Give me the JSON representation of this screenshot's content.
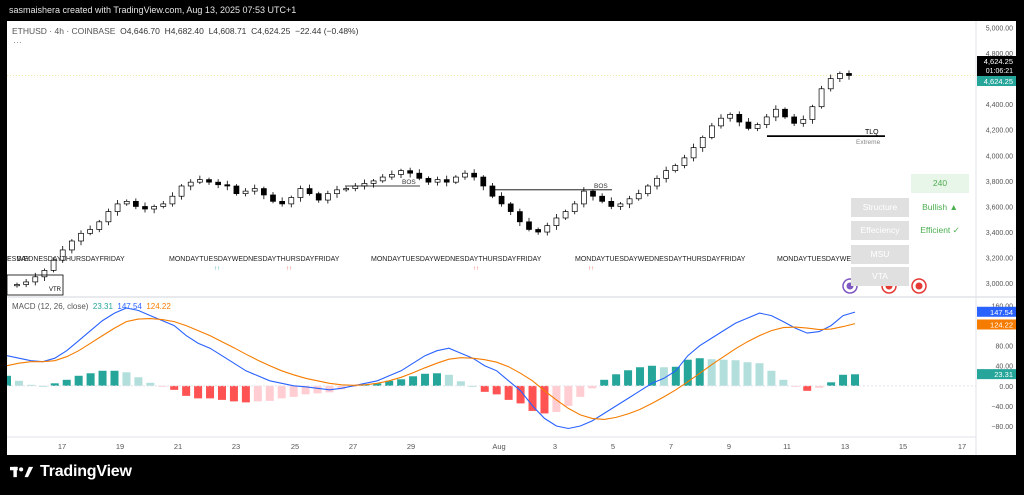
{
  "header": {
    "title": "sasmaishera created with TradingView.com, Aug 13, 2025 07:53 UTC+1"
  },
  "symbol_bar": {
    "name": "ETHUSD · 4h · COINBASE",
    "open": "O4,646.70",
    "high": "H4,682.40",
    "low": "L4,608.71",
    "close": "C4,624.25",
    "change": "−22.44 (−0.48%)",
    "more": "···"
  },
  "price_tags": {
    "last": "4,624.25",
    "countdown": "01:06:21",
    "last2": "4,624.25"
  },
  "macd_tags": {
    "macd": "147.54",
    "signal": "124.22",
    "hist": "23.31"
  },
  "macd_legend": {
    "name": "MACD (12, 26, close)",
    "hist": "23.31",
    "macd": "147.54",
    "signal": "124.22"
  },
  "annotations": {
    "bos1": "BOS",
    "bos2": "BOS",
    "tlq": "TLQ",
    "extreme": "Extreme",
    "vtr": "VTR",
    "day_labels_1": "MONDAYTUESDAYWEDNESDAYTHURSDAYFRIDAY",
    "day_labels_2": "MONDAYTUESDAYWEDNESDAYTHURSDAYFRIDAY",
    "day_labels_3": "MONDAYTUESDAYWEDNESDAYTHURSDAYFRIDAY",
    "day_labels_4": "MONDAYTUESDAYWEDNESDAY",
    "day_labels_0": "WEDNESDAYTHURSDAYFRIDAY",
    "day_labels_0_prefix": "ESDAY"
  },
  "info_table": {
    "header_value": "240",
    "rows": [
      {
        "label": "Structure",
        "value": "Bullish ▲"
      },
      {
        "label": "Effeciency",
        "value": "Efficient ✓"
      },
      {
        "label": "MSU",
        "value": ""
      },
      {
        "label": "VTA",
        "value": ""
      }
    ]
  },
  "brand": {
    "name": "TradingView"
  },
  "colors": {
    "up": "#26a69a",
    "down": "#ef5350",
    "macd": "#2962ff",
    "signal": "#f57c00",
    "hist_up_strong": "#26a69a",
    "hist_up_weak": "#b2dfdb",
    "hist_dn_strong": "#ff5252",
    "hist_dn_weak": "#ffcdd2",
    "candle": "#000000",
    "table_green": "#4caf50"
  },
  "chart_data": [
    {
      "type": "candlestick",
      "title": "ETHUSD · 4h · COINBASE",
      "ylim": [
        2900,
        5050
      ],
      "y_ticks": [
        "5,000.00",
        "4,800.00",
        "4,600.00",
        "4,400.00",
        "4,200.00",
        "4,000.00",
        "3,800.00",
        "3,600.00",
        "3,400.00",
        "3,200.00",
        "3,000.00"
      ],
      "y_tick_values": [
        5000,
        4800,
        4600,
        4400,
        4200,
        4000,
        3800,
        3600,
        3400,
        3200,
        3000
      ],
      "x_ticks": [
        "17",
        "19",
        "21",
        "23",
        "25",
        "27",
        "29",
        "Aug",
        "3",
        "5",
        "7",
        "9",
        "11",
        "13",
        "15",
        "17"
      ],
      "close_path": [
        2990,
        3010,
        3050,
        3100,
        3180,
        3260,
        3330,
        3390,
        3420,
        3480,
        3560,
        3620,
        3640,
        3600,
        3580,
        3600,
        3620,
        3680,
        3760,
        3790,
        3810,
        3790,
        3770,
        3760,
        3700,
        3720,
        3740,
        3690,
        3640,
        3620,
        3670,
        3740,
        3700,
        3650,
        3700,
        3730,
        3740,
        3760,
        3780,
        3800,
        3830,
        3850,
        3880,
        3860,
        3820,
        3790,
        3810,
        3790,
        3830,
        3860,
        3830,
        3760,
        3680,
        3620,
        3560,
        3480,
        3420,
        3400,
        3450,
        3510,
        3560,
        3620,
        3720,
        3680,
        3640,
        3600,
        3620,
        3660,
        3700,
        3760,
        3820,
        3880,
        3920,
        3980,
        4060,
        4140,
        4230,
        4290,
        4320,
        4260,
        4210,
        4240,
        4300,
        4360,
        4300,
        4250,
        4280,
        4380,
        4520,
        4600,
        4640,
        4624
      ]
    },
    {
      "type": "line",
      "title": "MACD (12, 26, close)",
      "ylim": [
        -100,
        175
      ],
      "y_ticks": [
        "160.00",
        "120.00",
        "80.00",
        "40.00",
        "0.00",
        "−40.00",
        "−80.00"
      ],
      "y_tick_values": [
        160,
        120,
        80,
        40,
        0,
        -40,
        -80
      ],
      "series": [
        {
          "name": "MACD",
          "values": [
            60,
            55,
            50,
            48,
            55,
            70,
            90,
            110,
            130,
            145,
            155,
            150,
            140,
            130,
            120,
            100,
            85,
            75,
            60,
            45,
            30,
            20,
            10,
            5,
            0,
            -2,
            -5,
            -8,
            -5,
            0,
            5,
            10,
            20,
            30,
            45,
            60,
            70,
            75,
            65,
            55,
            40,
            30,
            10,
            -10,
            -40,
            -65,
            -80,
            -85,
            -80,
            -70,
            -55,
            -40,
            -25,
            -10,
            5,
            15,
            30,
            60,
            80,
            95,
            110,
            125,
            135,
            145,
            140,
            128,
            115,
            105,
            108,
            120,
            140,
            147
          ]
        },
        {
          "name": "Signal",
          "values": [
            40,
            45,
            48,
            48,
            50,
            58,
            70,
            85,
            100,
            115,
            128,
            133,
            134,
            132,
            128,
            120,
            110,
            100,
            88,
            76,
            63,
            51,
            40,
            30,
            22,
            15,
            10,
            5,
            2,
            1,
            2,
            5,
            10,
            17,
            26,
            36,
            45,
            53,
            56,
            55,
            52,
            47,
            38,
            25,
            10,
            -10,
            -28,
            -45,
            -58,
            -65,
            -67,
            -63,
            -56,
            -47,
            -35,
            -22,
            -8,
            8,
            25,
            42,
            58,
            74,
            88,
            100,
            110,
            116,
            117,
            115,
            112,
            113,
            118,
            124
          ]
        }
      ]
    }
  ]
}
